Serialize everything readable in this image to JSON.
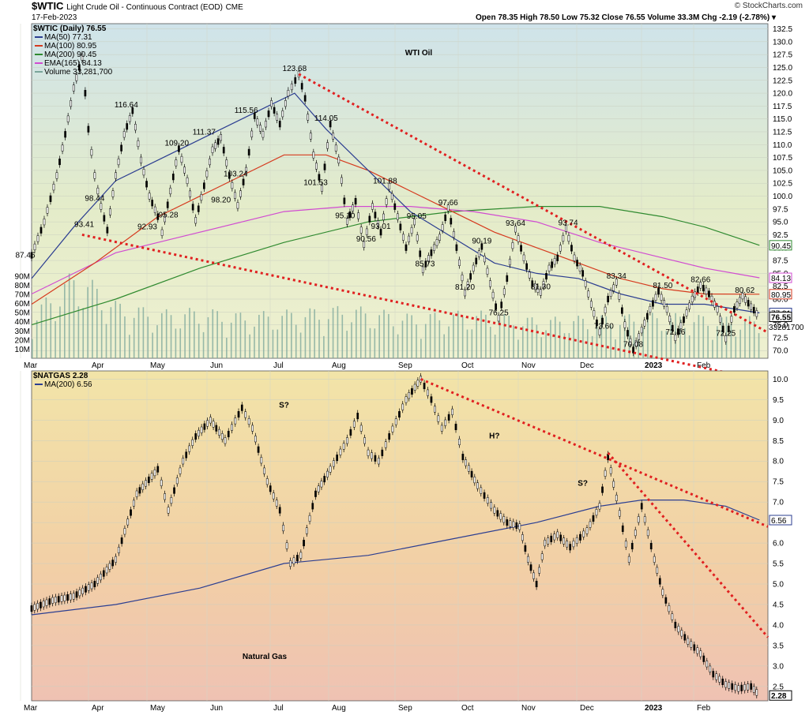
{
  "header": {
    "symbol": "$WTIC",
    "description": "Light Crude Oil - Continuous Contract (EOD)",
    "exchange": "CME",
    "date": "17-Feb-2023",
    "brand": "© StockCharts.com",
    "ohlc": "Open 78.35  High 78.50  Low 75.32  Close 76.55  Volume 33.3M  Chg -2.19 (-2.78%) ▾"
  },
  "chart_data": [
    {
      "type": "line",
      "title": "WTI Oil",
      "legend": [
        "$WTIC (Daily) 76.55",
        "MA(50) 77.31",
        "MA(100) 80.95",
        "MA(200) 90.45",
        "EMA(165) 84.13",
        "Volume 33,281,700"
      ],
      "colors": {
        "price": "#000000",
        "ma50": "#2c3e91",
        "ma100": "#d63a1e",
        "ma200": "#2f8a2f",
        "ema165": "#d14bd1",
        "volume": "#7aa59a",
        "trend": "#e02020",
        "title": "#e00000"
      },
      "x_ticks": [
        "Mar",
        "Apr",
        "May",
        "Jun",
        "Jul",
        "Aug",
        "Sep",
        "Oct",
        "Nov",
        "Dec",
        "2023",
        "Feb"
      ],
      "y_ticks": [
        "132.5",
        "130.0",
        "127.5",
        "125.0",
        "122.5",
        "120.0",
        "117.5",
        "115.0",
        "112.5",
        "110.0",
        "107.5",
        "105.0",
        "102.5",
        "100.0",
        "97.5",
        "95.0",
        "92.5",
        "90.0",
        "87.5",
        "85.0",
        "82.5",
        "80.0",
        "77.5",
        "75.0",
        "72.5",
        "70.0"
      ],
      "ylim": [
        68.5,
        133.5
      ],
      "volume_ticks": [
        "90M",
        "80M",
        "70M",
        "60M",
        "50M",
        "40M",
        "30M",
        "20M",
        "10M"
      ],
      "last_badges": [
        "90.45",
        "84.13",
        "80.95",
        "77.31",
        "76.55",
        "33281700"
      ],
      "price_path": [
        [
          0,
          88.5
        ],
        [
          6,
          95
        ],
        [
          12,
          104
        ],
        [
          16,
          112
        ],
        [
          20,
          121
        ],
        [
          24,
          127
        ],
        [
          27,
          113
        ],
        [
          30,
          104
        ],
        [
          33,
          98
        ],
        [
          36,
          93.4
        ],
        [
          40,
          104
        ],
        [
          44,
          112
        ],
        [
          48,
          116.6
        ],
        [
          52,
          107
        ],
        [
          56,
          100
        ],
        [
          60,
          96
        ],
        [
          62,
          92.9
        ],
        [
          66,
          101
        ],
        [
          70,
          109.2
        ],
        [
          74,
          103
        ],
        [
          78,
          95.3
        ],
        [
          82,
          102
        ],
        [
          86,
          109
        ],
        [
          90,
          111.4
        ],
        [
          94,
          104
        ],
        [
          98,
          98.2
        ],
        [
          102,
          105
        ],
        [
          106,
          115.6
        ],
        [
          110,
          112
        ],
        [
          114,
          118
        ],
        [
          118,
          114
        ],
        [
          122,
          120
        ],
        [
          127,
          123.7
        ],
        [
          130,
          119
        ],
        [
          134,
          108
        ],
        [
          138,
          101.5
        ],
        [
          142,
          114
        ],
        [
          146,
          107
        ],
        [
          150,
          95.1
        ],
        [
          154,
          99
        ],
        [
          158,
          90.6
        ],
        [
          162,
          98
        ],
        [
          166,
          93
        ],
        [
          170,
          101.9
        ],
        [
          174,
          96
        ],
        [
          178,
          90
        ],
        [
          182,
          95
        ],
        [
          186,
          85.7
        ],
        [
          190,
          89
        ],
        [
          194,
          92
        ],
        [
          198,
          97.7
        ],
        [
          202,
          90
        ],
        [
          206,
          81.2
        ],
        [
          210,
          86
        ],
        [
          214,
          90.2
        ],
        [
          218,
          83
        ],
        [
          222,
          76.3
        ],
        [
          226,
          84
        ],
        [
          230,
          93.6
        ],
        [
          234,
          88
        ],
        [
          238,
          83
        ],
        [
          242,
          81.3
        ],
        [
          246,
          86
        ],
        [
          250,
          88
        ],
        [
          254,
          93.7
        ],
        [
          258,
          88
        ],
        [
          262,
          85
        ],
        [
          266,
          79
        ],
        [
          270,
          73.6
        ],
        [
          274,
          80
        ],
        [
          278,
          83.3
        ],
        [
          282,
          75
        ],
        [
          286,
          70.1
        ],
        [
          290,
          74
        ],
        [
          294,
          78
        ],
        [
          298,
          81.5
        ],
        [
          302,
          78
        ],
        [
          306,
          72.5
        ],
        [
          310,
          76
        ],
        [
          314,
          80
        ],
        [
          318,
          82.7
        ],
        [
          322,
          81
        ],
        [
          326,
          78
        ],
        [
          330,
          72.3
        ],
        [
          334,
          78
        ],
        [
          338,
          80.6
        ],
        [
          342,
          78.5
        ],
        [
          346,
          76.55
        ]
      ],
      "ma50_path": [
        [
          0,
          84
        ],
        [
          20,
          94
        ],
        [
          40,
          103
        ],
        [
          60,
          107
        ],
        [
          80,
          111
        ],
        [
          100,
          115
        ],
        [
          115,
          118
        ],
        [
          125,
          120
        ],
        [
          140,
          113
        ],
        [
          160,
          105
        ],
        [
          180,
          97
        ],
        [
          200,
          92
        ],
        [
          220,
          87
        ],
        [
          240,
          85
        ],
        [
          260,
          84
        ],
        [
          280,
          81
        ],
        [
          300,
          79
        ],
        [
          320,
          79
        ],
        [
          346,
          77.31
        ]
      ],
      "ma100_path": [
        [
          0,
          79
        ],
        [
          30,
          87
        ],
        [
          60,
          96
        ],
        [
          90,
          102
        ],
        [
          120,
          108
        ],
        [
          140,
          108
        ],
        [
          160,
          105
        ],
        [
          180,
          101
        ],
        [
          200,
          97
        ],
        [
          220,
          93
        ],
        [
          240,
          90
        ],
        [
          260,
          87
        ],
        [
          280,
          84
        ],
        [
          300,
          82
        ],
        [
          320,
          81
        ],
        [
          346,
          80.95
        ]
      ],
      "ma200_path": [
        [
          0,
          75
        ],
        [
          40,
          80
        ],
        [
          80,
          86
        ],
        [
          120,
          91
        ],
        [
          160,
          95
        ],
        [
          200,
          97
        ],
        [
          240,
          98
        ],
        [
          270,
          98
        ],
        [
          300,
          96
        ],
        [
          320,
          94
        ],
        [
          346,
          90.45
        ]
      ],
      "ema165_path": [
        [
          0,
          81
        ],
        [
          40,
          89
        ],
        [
          80,
          93
        ],
        [
          120,
          97
        ],
        [
          150,
          98
        ],
        [
          180,
          98
        ],
        [
          210,
          97
        ],
        [
          240,
          95
        ],
        [
          270,
          91
        ],
        [
          300,
          88
        ],
        [
          320,
          86
        ],
        [
          346,
          84.13
        ]
      ],
      "volume_path": [
        [
          0,
          35
        ],
        [
          10,
          55
        ],
        [
          20,
          70
        ],
        [
          30,
          60
        ],
        [
          40,
          45
        ],
        [
          60,
          38
        ],
        [
          80,
          40
        ],
        [
          100,
          36
        ],
        [
          120,
          38
        ],
        [
          150,
          42
        ],
        [
          180,
          35
        ],
        [
          210,
          38
        ],
        [
          240,
          32
        ],
        [
          270,
          34
        ],
        [
          300,
          36
        ],
        [
          330,
          33
        ],
        [
          346,
          33
        ]
      ],
      "trendlines": [
        [
          [
            127,
            123.7
          ],
          [
            350,
            73.5
          ]
        ],
        [
          [
            24,
            92.5
          ],
          [
            350,
            64
          ]
        ]
      ],
      "annotations": [
        {
          "x": -3,
          "y": 87.46,
          "label": "87.46"
        },
        {
          "x": 25,
          "y": 93.41,
          "label": "93.41"
        },
        {
          "x": 30,
          "y": 98.44,
          "label": "98.44"
        },
        {
          "x": 45,
          "y": 116.64,
          "label": "116.64"
        },
        {
          "x": 55,
          "y": 92.93,
          "label": "92.93"
        },
        {
          "x": 65,
          "y": 95.28,
          "label": "95.28"
        },
        {
          "x": 69,
          "y": 109.2,
          "label": "109.20"
        },
        {
          "x": 82,
          "y": 111.37,
          "label": "111.37"
        },
        {
          "x": 90,
          "y": 98.2,
          "label": "98.20"
        },
        {
          "x": 97,
          "y": 103.24,
          "label": "103.24"
        },
        {
          "x": 102,
          "y": 115.56,
          "label": "115.56"
        },
        {
          "x": 125,
          "y": 123.68,
          "label": "123.68"
        },
        {
          "x": 140,
          "y": 114.05,
          "label": "114.05"
        },
        {
          "x": 135,
          "y": 101.53,
          "label": "101.53"
        },
        {
          "x": 149,
          "y": 95.1,
          "label": "95.10"
        },
        {
          "x": 159,
          "y": 90.56,
          "label": "90.56"
        },
        {
          "x": 166,
          "y": 93.01,
          "label": "93.01"
        },
        {
          "x": 168,
          "y": 101.88,
          "label": "101.88"
        },
        {
          "x": 183,
          "y": 95.05,
          "label": "95.05"
        },
        {
          "x": 198,
          "y": 97.66,
          "label": "97.66"
        },
        {
          "x": 187,
          "y": 85.73,
          "label": "85.73"
        },
        {
          "x": 214,
          "y": 90.19,
          "label": "90.19"
        },
        {
          "x": 206,
          "y": 81.2,
          "label": "81.20"
        },
        {
          "x": 222,
          "y": 76.25,
          "label": "76.25"
        },
        {
          "x": 230,
          "y": 93.64,
          "label": "93.64"
        },
        {
          "x": 242,
          "y": 81.3,
          "label": "81.30"
        },
        {
          "x": 255,
          "y": 93.74,
          "label": "93.74"
        },
        {
          "x": 278,
          "y": 83.34,
          "label": "83.34"
        },
        {
          "x": 272,
          "y": 73.6,
          "label": "73.60"
        },
        {
          "x": 286,
          "y": 70.08,
          "label": "70.08"
        },
        {
          "x": 300,
          "y": 81.5,
          "label": "81.50"
        },
        {
          "x": 306,
          "y": 72.46,
          "label": "72.46"
        },
        {
          "x": 318,
          "y": 82.66,
          "label": "82.66"
        },
        {
          "x": 330,
          "y": 72.25,
          "label": "72.25"
        },
        {
          "x": 339,
          "y": 80.62,
          "label": "80.62"
        }
      ]
    },
    {
      "type": "line",
      "title": "Natural Gas",
      "legend": [
        "$NATGAS 2.28",
        "MA(200) 6.56"
      ],
      "colors": {
        "price": "#000000",
        "ma200": "#2c3e91",
        "trend": "#e02020",
        "title": "#e00000"
      },
      "x_ticks": [
        "Mar",
        "Apr",
        "May",
        "Jun",
        "Jul",
        "Aug",
        "Sep",
        "Oct",
        "Nov",
        "Dec",
        "2023",
        "Feb"
      ],
      "y_ticks": [
        "10.0",
        "9.5",
        "9.0",
        "8.5",
        "8.0",
        "7.5",
        "7.0",
        "6.5",
        "6.0",
        "5.5",
        "5.0",
        "4.5",
        "4.0",
        "3.5",
        "3.0",
        "2.5"
      ],
      "ylim": [
        2.15,
        10.2
      ],
      "last_badges": [
        "6.56",
        "2.28"
      ],
      "price_path": [
        [
          0,
          4.4
        ],
        [
          10,
          4.6
        ],
        [
          20,
          4.7
        ],
        [
          30,
          5.0
        ],
        [
          40,
          5.6
        ],
        [
          50,
          7.2
        ],
        [
          60,
          7.8
        ],
        [
          65,
          6.8
        ],
        [
          72,
          8.0
        ],
        [
          78,
          8.6
        ],
        [
          85,
          9.0
        ],
        [
          92,
          8.5
        ],
        [
          100,
          9.3
        ],
        [
          105,
          8.8
        ],
        [
          112,
          7.5
        ],
        [
          118,
          6.8
        ],
        [
          123,
          5.5
        ],
        [
          128,
          5.7
        ],
        [
          135,
          7.2
        ],
        [
          142,
          7.8
        ],
        [
          150,
          8.5
        ],
        [
          155,
          9.1
        ],
        [
          160,
          8.2
        ],
        [
          165,
          8.0
        ],
        [
          170,
          8.6
        ],
        [
          178,
          9.5
        ],
        [
          185,
          10.0
        ],
        [
          190,
          9.5
        ],
        [
          195,
          8.8
        ],
        [
          200,
          9.2
        ],
        [
          205,
          8.1
        ],
        [
          212,
          7.4
        ],
        [
          220,
          6.8
        ],
        [
          226,
          6.5
        ],
        [
          232,
          6.4
        ],
        [
          236,
          5.6
        ],
        [
          240,
          5.0
        ],
        [
          244,
          6.0
        ],
        [
          250,
          6.2
        ],
        [
          256,
          5.9
        ],
        [
          264,
          6.3
        ],
        [
          270,
          6.9
        ],
        [
          274,
          8.1
        ],
        [
          278,
          7.1
        ],
        [
          284,
          5.6
        ],
        [
          290,
          6.9
        ],
        [
          296,
          5.6
        ],
        [
          300,
          4.8
        ],
        [
          306,
          4.0
        ],
        [
          312,
          3.6
        ],
        [
          318,
          3.3
        ],
        [
          324,
          2.8
        ],
        [
          330,
          2.55
        ],
        [
          336,
          2.45
        ],
        [
          342,
          2.5
        ],
        [
          346,
          2.28
        ]
      ],
      "ma200_path": [
        [
          0,
          4.25
        ],
        [
          40,
          4.5
        ],
        [
          80,
          4.9
        ],
        [
          120,
          5.5
        ],
        [
          160,
          5.7
        ],
        [
          200,
          6.1
        ],
        [
          240,
          6.5
        ],
        [
          270,
          6.9
        ],
        [
          290,
          7.05
        ],
        [
          310,
          7.05
        ],
        [
          330,
          6.9
        ],
        [
          346,
          6.56
        ]
      ],
      "trendlines": [
        [
          [
            185,
            10.0
          ],
          [
            350,
            6.4
          ]
        ],
        [
          [
            274,
            8.2
          ],
          [
            350,
            3.7
          ]
        ]
      ],
      "annotations": [
        {
          "x": 120,
          "y": 9.3,
          "label": "S?"
        },
        {
          "x": 220,
          "y": 8.55,
          "label": "H?"
        },
        {
          "x": 262,
          "y": 7.4,
          "label": "S?"
        }
      ]
    }
  ]
}
